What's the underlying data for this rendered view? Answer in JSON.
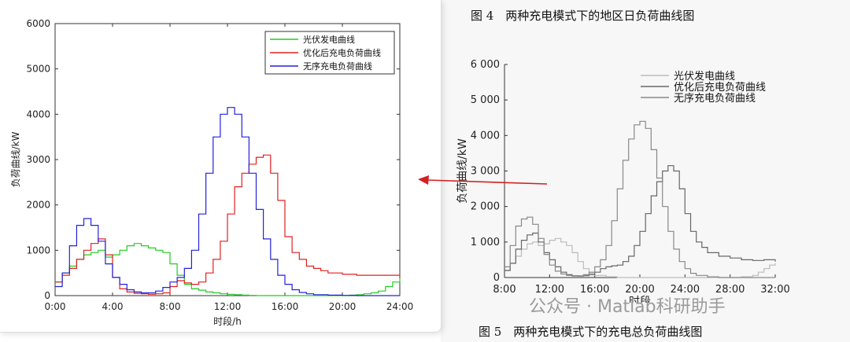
{
  "fig4_caption": "图 4　两种充电模式下的地区日负荷曲线图",
  "fig5_caption": "图 5　两种充电模式下的充电总负荷曲线图",
  "watermark": "公众号 · Matlab科研助手",
  "colors": {
    "pv": "#22cc22",
    "optimized": "#e02020",
    "unordered": "#2222dd",
    "gray": "#777777",
    "arrow": "#d42020"
  },
  "chart_data": [
    {
      "type": "line",
      "title": "",
      "xlabel": "时段/h",
      "ylabel": "负荷曲线/kW",
      "xlim": [
        0,
        24
      ],
      "ylim": [
        0,
        6000
      ],
      "xticks": [
        0,
        4,
        8,
        12,
        16,
        20,
        24
      ],
      "xtick_labels": [
        "0:00",
        "4:00",
        "8:00",
        "12:00",
        "16:00",
        "20:00",
        "24:00"
      ],
      "yticks": [
        0,
        1000,
        2000,
        3000,
        4000,
        5000,
        6000
      ],
      "ytick_labels": [
        "0",
        "1000",
        "2000",
        "3000",
        "4000",
        "5000",
        "6000"
      ],
      "legend_position": "top-right",
      "series": [
        {
          "name": "光伏发电曲线",
          "color": "#22cc22",
          "x": [
            0,
            0.5,
            1,
            1.5,
            2,
            2.5,
            3,
            3.5,
            4,
            4.5,
            5,
            5.5,
            6,
            6.5,
            7,
            7.5,
            8,
            8.5,
            9,
            9.5,
            10,
            10.5,
            11,
            11.5,
            12,
            12.5,
            13,
            13.5,
            14,
            15,
            16,
            17,
            18,
            19,
            20,
            20.5,
            21,
            21.5,
            22,
            22.5,
            23,
            23.5,
            24
          ],
          "y": [
            300,
            500,
            650,
            800,
            900,
            950,
            1000,
            850,
            900,
            1000,
            1100,
            1150,
            1100,
            1050,
            1000,
            950,
            700,
            450,
            250,
            150,
            120,
            80,
            60,
            40,
            30,
            20,
            10,
            5,
            0,
            0,
            0,
            0,
            0,
            0,
            0,
            10,
            20,
            40,
            60,
            100,
            200,
            300,
            380
          ]
        },
        {
          "name": "优化后充电负荷曲线",
          "color": "#e02020",
          "x": [
            0,
            0.5,
            1,
            1.5,
            2,
            2.5,
            3,
            3.5,
            4,
            4.5,
            5,
            5.5,
            6,
            6.5,
            7,
            7.5,
            8,
            8.5,
            9,
            9.5,
            10,
            10.5,
            11,
            11.5,
            12,
            12.5,
            13,
            13.5,
            14,
            14.5,
            15,
            15.5,
            16,
            16.5,
            17,
            17.5,
            18,
            18.5,
            19,
            20,
            21,
            22,
            23,
            24
          ],
          "y": [
            300,
            450,
            600,
            800,
            1000,
            1150,
            1250,
            900,
            400,
            150,
            80,
            50,
            40,
            30,
            40,
            60,
            200,
            330,
            280,
            250,
            300,
            500,
            800,
            1200,
            1800,
            2400,
            2700,
            2900,
            3050,
            3100,
            2700,
            2100,
            1300,
            950,
            800,
            650,
            600,
            550,
            500,
            470,
            450,
            450,
            450,
            420
          ]
        },
        {
          "name": "无序充电负荷曲线",
          "color": "#2222dd",
          "x": [
            0,
            0.5,
            1,
            1.5,
            2,
            2.5,
            3,
            3.5,
            4,
            4.5,
            5,
            5.5,
            6,
            6.5,
            7,
            7.5,
            8,
            8.5,
            9,
            9.5,
            10,
            10.5,
            11,
            11.5,
            12,
            12.5,
            13,
            13.5,
            14,
            14.5,
            15,
            15.5,
            16,
            16.5,
            17,
            17.5,
            18,
            19,
            20,
            21,
            22,
            23,
            24
          ],
          "y": [
            200,
            500,
            1100,
            1550,
            1700,
            1550,
            1200,
            700,
            400,
            250,
            130,
            80,
            60,
            60,
            100,
            180,
            300,
            400,
            600,
            1000,
            1800,
            2700,
            3500,
            4000,
            4150,
            4000,
            3500,
            2700,
            1900,
            1250,
            800,
            450,
            250,
            130,
            70,
            40,
            20,
            10,
            5,
            0,
            0,
            0,
            0
          ]
        }
      ]
    },
    {
      "type": "line",
      "title": "",
      "xlabel": "时段",
      "ylabel": "负荷曲线/kW",
      "xlim": [
        8,
        32
      ],
      "ylim": [
        0,
        6000
      ],
      "xticks": [
        8,
        12,
        16,
        20,
        24,
        28,
        32
      ],
      "xtick_labels": [
        "8:00",
        "12:00",
        "16:00",
        "20:00",
        "24:00",
        "28:00",
        "32:00"
      ],
      "yticks": [
        0,
        1000,
        2000,
        3000,
        4000,
        5000,
        6000
      ],
      "ytick_labels": [
        "0",
        "1 000",
        "2 000",
        "3 000",
        "4 000",
        "5 000",
        "6 000"
      ],
      "legend_position": "top-left",
      "series": [
        {
          "name": "光伏发电曲线",
          "color": "#bbbbbb",
          "x": [
            8,
            8.5,
            9,
            9.5,
            10,
            10.5,
            11,
            11.5,
            12,
            12.5,
            13,
            13.5,
            14,
            14.5,
            15,
            15.5,
            16,
            17,
            18,
            19,
            20,
            21,
            22,
            23,
            24,
            25,
            26,
            27,
            28,
            29,
            30,
            30.5,
            31,
            31.5,
            32
          ],
          "y": [
            200,
            400,
            600,
            800,
            950,
            1000,
            900,
            950,
            1050,
            1100,
            1000,
            900,
            700,
            450,
            250,
            120,
            60,
            20,
            0,
            0,
            0,
            0,
            0,
            0,
            0,
            0,
            0,
            0,
            0,
            20,
            60,
            150,
            250,
            350,
            400
          ]
        },
        {
          "name": "优化后充电负荷曲线",
          "color": "#666666",
          "x": [
            8,
            8.5,
            9,
            9.5,
            10,
            10.5,
            11,
            11.5,
            12,
            12.5,
            13,
            13.5,
            14,
            14.5,
            15,
            15.5,
            16,
            16.5,
            17,
            17.5,
            18,
            18.5,
            19,
            19.5,
            20,
            20.5,
            21,
            21.5,
            22,
            22.5,
            23,
            23.5,
            24,
            24.5,
            25,
            25.5,
            26,
            27,
            28,
            29,
            30,
            31,
            32
          ],
          "y": [
            200,
            400,
            800,
            1050,
            1200,
            1250,
            1000,
            700,
            500,
            300,
            150,
            80,
            50,
            40,
            50,
            80,
            150,
            250,
            300,
            330,
            350,
            450,
            600,
            900,
            1300,
            1800,
            2300,
            2700,
            3000,
            3150,
            3000,
            2500,
            1800,
            1300,
            1000,
            850,
            700,
            600,
            550,
            500,
            480,
            500,
            450
          ]
        },
        {
          "name": "无序充电负荷曲线",
          "color": "#888888",
          "x": [
            8,
            8.5,
            9,
            9.5,
            10,
            10.5,
            11,
            11.5,
            12,
            12.5,
            13,
            13.5,
            14,
            14.5,
            15,
            15.5,
            16,
            16.5,
            17,
            17.5,
            18,
            18.5,
            19,
            19.5,
            20,
            20.5,
            21,
            21.5,
            22,
            22.5,
            23,
            23.5,
            24,
            24.5,
            25,
            26,
            27,
            28,
            29,
            30,
            31,
            32
          ],
          "y": [
            300,
            900,
            1450,
            1650,
            1700,
            1500,
            1100,
            650,
            350,
            180,
            100,
            60,
            40,
            50,
            80,
            150,
            300,
            500,
            900,
            1600,
            2500,
            3300,
            3900,
            4300,
            4400,
            4200,
            3600,
            2800,
            2000,
            1300,
            800,
            450,
            250,
            120,
            60,
            20,
            0,
            0,
            0,
            0,
            0,
            0
          ]
        }
      ]
    }
  ]
}
